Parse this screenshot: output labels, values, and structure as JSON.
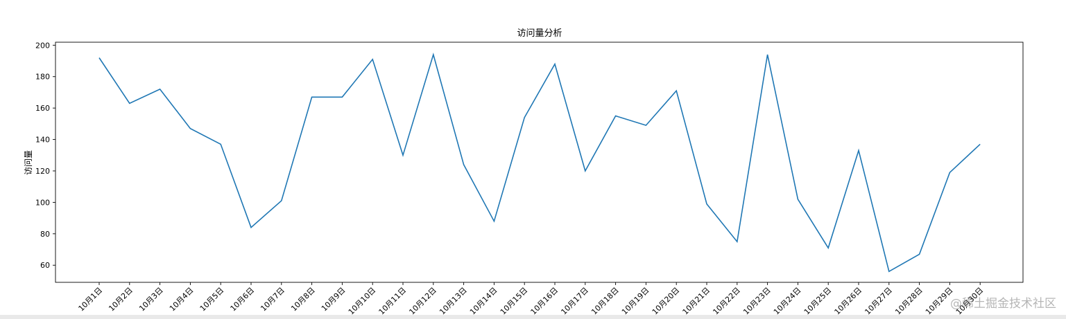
{
  "chart_data": {
    "type": "line",
    "title": "访问量分析",
    "xlabel": "",
    "ylabel": "访问量",
    "categories": [
      "10月1日",
      "10月2日",
      "10月3日",
      "10月4日",
      "10月5日",
      "10月6日",
      "10月7日",
      "10月8日",
      "10月9日",
      "10月10日",
      "10月11日",
      "10月12日",
      "10月13日",
      "10月14日",
      "10月15日",
      "10月16日",
      "10月17日",
      "10月18日",
      "10月19日",
      "10月20日",
      "10月21日",
      "10月22日",
      "10月23日",
      "10月24日",
      "10月25日",
      "10月26日",
      "10月27日",
      "10月28日",
      "10月29日",
      "10月30日"
    ],
    "values": [
      192,
      163,
      172,
      147,
      137,
      84,
      101,
      167,
      167,
      191,
      130,
      194,
      124,
      88,
      154,
      188,
      120,
      155,
      149,
      171,
      99,
      75,
      194,
      102,
      71,
      133,
      56,
      67,
      119,
      137
    ],
    "ylim": [
      49.1,
      201.9
    ],
    "yticks": [
      60,
      80,
      100,
      120,
      140,
      160,
      180,
      200
    ],
    "grid": false,
    "line_color": "#1f77b4"
  },
  "watermark": "@稀土掘金技术社区"
}
